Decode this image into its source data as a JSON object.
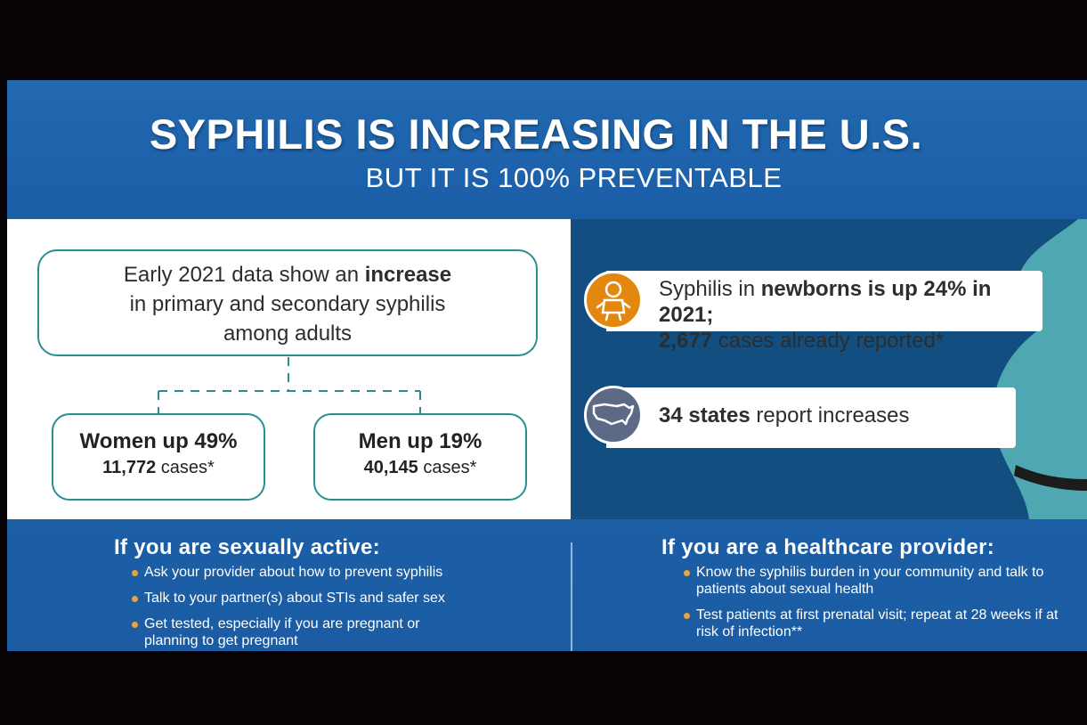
{
  "header": {
    "title": "SYPHILIS IS INCREASING IN THE U.S.",
    "subtitle": "BUT IT IS 100% PREVENTABLE"
  },
  "summary": {
    "line1_prefix": "Early 2021 data show an ",
    "line1_bold": "increase",
    "line2": "in primary and secondary syphilis",
    "line3": "among adults"
  },
  "women": {
    "headline": "Women up 49%",
    "count": "11,772",
    "count_suffix": " cases*"
  },
  "men": {
    "headline": "Men up 19%",
    "count": "40,145",
    "count_suffix": " cases*"
  },
  "newborns": {
    "icon": "baby-icon",
    "prefix": "Syphilis in ",
    "bold": "newborns is up 24% in 2021;",
    "count": "2,677",
    "suffix": " cases already reported*"
  },
  "states": {
    "icon": "us-map-icon",
    "bold": "34 states",
    "suffix": " report increases"
  },
  "sexually_active": {
    "heading": "If you are sexually active:",
    "items": [
      "Ask your provider about how to prevent syphilis",
      "Talk to your partner(s) about STIs and safer sex",
      "Get tested, especially if you are pregnant or planning to get pregnant"
    ]
  },
  "provider": {
    "heading": "If you are a healthcare provider:",
    "items": [
      "Know the syphilis burden in your community and talk to patients about sexual health",
      "Test patients at first prenatal visit; repeat at 28 weeks if at risk of infection**"
    ]
  },
  "colors": {
    "blue": "#1e62a8",
    "dark_blue": "#124e7f",
    "teal": "#2a8e91",
    "orange": "#e3870f",
    "figure": "#4fa7b2"
  }
}
